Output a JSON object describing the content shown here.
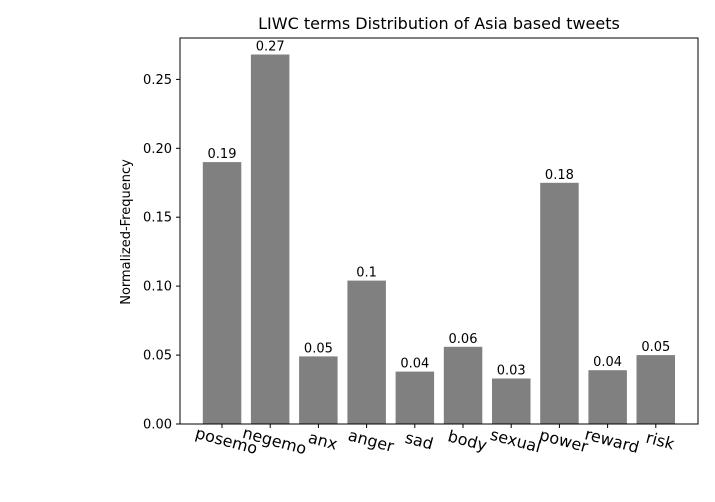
{
  "chart_data": {
    "type": "bar",
    "title": "LIWC terms Distribution of Asia based tweets",
    "xlabel": "",
    "ylabel": "Normalized-Frequency",
    "categories": [
      "posemo",
      "negemo",
      "anx",
      "anger",
      "sad",
      "body",
      "sexual",
      "power",
      "reward",
      "risk"
    ],
    "values": [
      0.19,
      0.268,
      0.049,
      0.104,
      0.038,
      0.056,
      0.033,
      0.175,
      0.039,
      0.05
    ],
    "data_labels": [
      "0.19",
      "0.27",
      "0.05",
      "0.1",
      "0.04",
      "0.06",
      "0.03",
      "0.18",
      "0.04",
      "0.05"
    ],
    "ylim": [
      0,
      0.28
    ],
    "yticks": [
      "0.00",
      "0.05",
      "0.10",
      "0.15",
      "0.20",
      "0.25"
    ],
    "ytick_values": [
      0,
      0.05,
      0.1,
      0.15,
      0.2,
      0.25
    ],
    "bar_color": "#808080",
    "grid": false
  }
}
